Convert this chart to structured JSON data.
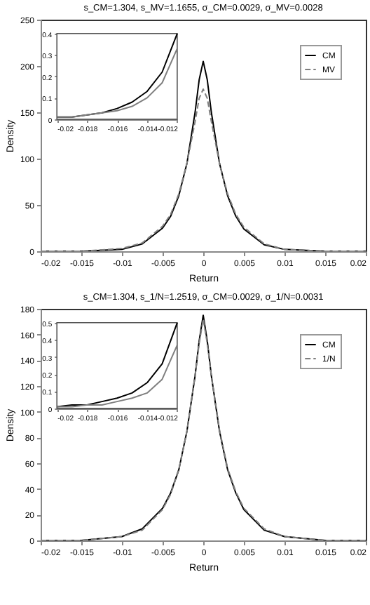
{
  "chart_data": [
    {
      "type": "line",
      "title": "s_CM=1.304, s_MV=1.1655, σ_CM=0.0029, σ_MV=0.0028",
      "xlabel": "Return",
      "ylabel": "Density",
      "legend": "top right",
      "xlim": [
        -0.02,
        0.02
      ],
      "xticks": [
        -0.02,
        -0.015,
        -0.01,
        -0.005,
        0,
        0.005,
        0.01,
        0.015,
        0.02
      ],
      "ylim": [
        0,
        250
      ],
      "yticks": [
        0,
        50,
        100,
        150,
        200,
        250
      ],
      "x": [
        -0.02,
        -0.015,
        -0.01,
        -0.0075,
        -0.005,
        -0.004,
        -0.003,
        -0.002,
        -0.001,
        -0.0005,
        0,
        0.0005,
        0.001,
        0.002,
        0.003,
        0.004,
        0.005,
        0.0075,
        0.01,
        0.015,
        0.02
      ],
      "series": [
        {
          "name": "CM",
          "color": "#000000",
          "line_style": "solid",
          "values": [
            0,
            0,
            2,
            8,
            25,
            38,
            60,
            95,
            150,
            185,
            205,
            185,
            150,
            95,
            60,
            38,
            24,
            7,
            2,
            0,
            0
          ]
        },
        {
          "name": "MV",
          "color": "#7f7f7f",
          "line_style": "dashed",
          "values": [
            0,
            0,
            3,
            9,
            27,
            40,
            62,
            95,
            140,
            165,
            175,
            165,
            140,
            95,
            62,
            40,
            26,
            8,
            2,
            0,
            0
          ]
        }
      ]
    },
    {
      "type": "line",
      "xlim": [
        -0.02,
        -0.012
      ],
      "xticks": [
        -0.02,
        -0.018,
        -0.016,
        -0.014,
        -0.012
      ],
      "ylim": [
        0,
        0.4
      ],
      "yticks": [
        0,
        0.1,
        0.2,
        0.3,
        0.4
      ],
      "x": [
        -0.02,
        -0.019,
        -0.018,
        -0.017,
        -0.016,
        -0.015,
        -0.014,
        -0.013,
        -0.012
      ],
      "series": [
        {
          "color": "#000000",
          "line_style": "solid",
          "values": [
            0.01,
            0.01,
            0.02,
            0.03,
            0.05,
            0.08,
            0.13,
            0.22,
            0.4
          ]
        },
        {
          "color": "#7f7f7f",
          "line_style": "solid",
          "values": [
            0.01,
            0.01,
            0.02,
            0.03,
            0.04,
            0.06,
            0.1,
            0.17,
            0.33
          ]
        }
      ]
    },
    {
      "type": "line",
      "title": "s_CM=1.304, s_1/N=1.2519, σ_CM=0.0029, σ_1/N=0.0031",
      "xlabel": "Return",
      "ylabel": "Density",
      "legend": "top right",
      "xlim": [
        -0.02,
        0.02
      ],
      "xticks": [
        -0.02,
        -0.015,
        -0.01,
        -0.005,
        0,
        0.005,
        0.01,
        0.015,
        0.02
      ],
      "ylim": [
        0,
        180
      ],
      "yticks": [
        0,
        20,
        40,
        60,
        80,
        100,
        120,
        140,
        160,
        180
      ],
      "x": [
        -0.02,
        -0.015,
        -0.01,
        -0.0075,
        -0.005,
        -0.004,
        -0.003,
        -0.002,
        -0.001,
        -0.0005,
        0,
        0.0005,
        0.001,
        0.002,
        0.003,
        0.004,
        0.005,
        0.0075,
        0.01,
        0.015,
        0.02
      ],
      "series": [
        {
          "name": "CM",
          "color": "#000000",
          "line_style": "solid",
          "values": [
            0,
            0,
            3,
            9,
            25,
            37,
            55,
            85,
            128,
            155,
            175,
            155,
            128,
            85,
            55,
            37,
            24,
            8,
            3,
            0,
            0
          ]
        },
        {
          "name": "1/N",
          "color": "#7f7f7f",
          "line_style": "dashed",
          "values": [
            0,
            0,
            3,
            8,
            24,
            36,
            55,
            85,
            128,
            153,
            172,
            153,
            128,
            86,
            56,
            38,
            25,
            9,
            3,
            0,
            0
          ]
        }
      ]
    },
    {
      "type": "line",
      "xlim": [
        -0.02,
        -0.012
      ],
      "xticks": [
        -0.02,
        -0.018,
        -0.016,
        -0.014,
        -0.012
      ],
      "ylim": [
        0,
        0.5
      ],
      "yticks": [
        0,
        0.1,
        0.2,
        0.3,
        0.4,
        0.5
      ],
      "x": [
        -0.02,
        -0.019,
        -0.018,
        -0.017,
        -0.016,
        -0.015,
        -0.014,
        -0.013,
        -0.012
      ],
      "series": [
        {
          "color": "#000000",
          "line_style": "solid",
          "values": [
            0.01,
            0.02,
            0.02,
            0.04,
            0.06,
            0.09,
            0.15,
            0.26,
            0.5
          ]
        },
        {
          "color": "#7f7f7f",
          "line_style": "solid",
          "values": [
            0.01,
            0.01,
            0.02,
            0.02,
            0.04,
            0.06,
            0.09,
            0.17,
            0.37
          ]
        }
      ]
    }
  ]
}
